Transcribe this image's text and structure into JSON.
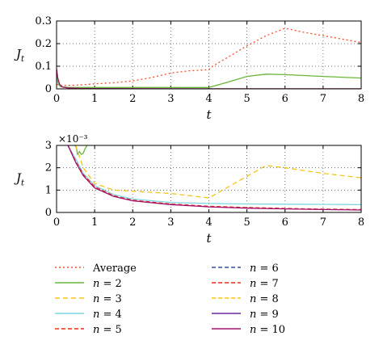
{
  "chart_data": [
    {
      "type": "line",
      "xlabel": "t",
      "ylabel": "J_t",
      "xlim": [
        0,
        8
      ],
      "ylim": [
        0,
        0.3
      ],
      "xticks": [
        "0",
        "1",
        "2",
        "3",
        "4",
        "5",
        "6",
        "7",
        "8"
      ],
      "yticks": [
        "0",
        "0.1",
        "0.2",
        "0.3"
      ],
      "grid": true,
      "series": [
        {
          "name": "Average",
          "color": "#ff4b2b",
          "dash": "2,3",
          "x": [
            0,
            0.1,
            0.2,
            0.5,
            1,
            1.5,
            2,
            2.5,
            3,
            3.5,
            4,
            4.1,
            4.5,
            5,
            5.5,
            6,
            6.5,
            7,
            7.5,
            8
          ],
          "y": [
            0.02,
            0.015,
            0.015,
            0.016,
            0.022,
            0.027,
            0.035,
            0.05,
            0.07,
            0.08,
            0.085,
            0.1,
            0.14,
            0.19,
            0.235,
            0.268,
            0.25,
            0.235,
            0.22,
            0.205
          ]
        },
        {
          "name": "n = 2",
          "color": "#6ab73a",
          "dash": "",
          "x": [
            0,
            0.05,
            0.1,
            0.3,
            1,
            2,
            3,
            4,
            4.5,
            5,
            5.5,
            6,
            7,
            8
          ],
          "y": [
            0.05,
            0.02,
            0.01,
            0.006,
            0.006,
            0.006,
            0.006,
            0.006,
            0.03,
            0.055,
            0.065,
            0.063,
            0.055,
            0.048
          ]
        },
        {
          "name": "n = 10",
          "color": "#a4106e",
          "dash": "",
          "x": [
            0,
            0.03,
            0.08,
            0.15,
            0.3,
            0.6,
            1,
            2,
            4,
            8
          ],
          "y": [
            0.09,
            0.05,
            0.02,
            0.008,
            0.004,
            0.002,
            0.0013,
            0.0007,
            0.0004,
            0.0002
          ]
        }
      ]
    },
    {
      "type": "line",
      "xlabel": "t",
      "ylabel": "J_t",
      "scale_label": "×10⁻³",
      "xlim": [
        0,
        8
      ],
      "ylim": [
        0,
        3
      ],
      "xticks": [
        "0",
        "1",
        "2",
        "3",
        "4",
        "5",
        "6",
        "7",
        "8"
      ],
      "yticks": [
        "0",
        "1",
        "2",
        "3"
      ],
      "grid": true,
      "series": [
        {
          "name": "n = 2",
          "color": "#6ab73a",
          "dash": "",
          "x": [
            0.48,
            0.52,
            0.55,
            0.6,
            0.65,
            0.7,
            0.75,
            0.8
          ],
          "y": [
            3,
            2.9,
            2.6,
            2.72,
            2.6,
            2.65,
            2.85,
            3
          ]
        },
        {
          "name": "n = 3",
          "color": "#f5c518",
          "dash": "6,4",
          "x": [
            0.5,
            0.7,
            1,
            1.5,
            2,
            3,
            4,
            5.5,
            6,
            7,
            8
          ],
          "y": [
            3,
            2,
            1.3,
            1.0,
            0.95,
            0.85,
            0.65,
            2.1,
            2.0,
            1.75,
            1.55
          ]
        },
        {
          "name": "n = 4",
          "color": "#7fd6e3",
          "dash": "",
          "x": [
            0.3,
            0.5,
            0.7,
            1,
            1.5,
            2,
            3,
            4,
            5,
            6,
            7,
            8
          ],
          "y": [
            3,
            2.4,
            1.75,
            1.2,
            0.8,
            0.6,
            0.45,
            0.4,
            0.38,
            0.37,
            0.36,
            0.35
          ]
        },
        {
          "name": "n = 5",
          "color": "#e8301e",
          "dash": "5,3",
          "x": [
            0.3,
            0.5,
            0.7,
            1,
            1.5,
            2,
            3,
            4,
            5,
            6,
            7,
            8
          ],
          "y": [
            3,
            2.3,
            1.7,
            1.15,
            0.75,
            0.55,
            0.38,
            0.28,
            0.22,
            0.18,
            0.15,
            0.13
          ]
        },
        {
          "name": "n = 10",
          "color": "#a4106e",
          "dash": "",
          "x": [
            0.3,
            0.5,
            0.7,
            1,
            1.5,
            2,
            3,
            4,
            5,
            6,
            7,
            8
          ],
          "y": [
            3,
            2.25,
            1.65,
            1.1,
            0.72,
            0.52,
            0.35,
            0.25,
            0.19,
            0.16,
            0.13,
            0.11
          ]
        }
      ]
    }
  ],
  "legend": [
    {
      "label": "Average",
      "color": "#ff4b2b",
      "dash": "2,3"
    },
    {
      "label": "n = 2",
      "color": "#6ab73a",
      "dash": ""
    },
    {
      "label": "n = 3",
      "color": "#f5c518",
      "dash": "6,4"
    },
    {
      "label": "n = 4",
      "color": "#7fd6e3",
      "dash": ""
    },
    {
      "label": "n = 5",
      "color": "#e8301e",
      "dash": "5,3"
    },
    {
      "label": "n = 6",
      "color": "#3a4fa0",
      "dash": "5,3"
    },
    {
      "label": "n = 7",
      "color": "#e8301e",
      "dash": "5,3"
    },
    {
      "label": "n = 8",
      "color": "#f5c518",
      "dash": "5,3"
    },
    {
      "label": "n = 9",
      "color": "#6a2ca0",
      "dash": ""
    },
    {
      "label": "n = 10",
      "color": "#a4106e",
      "dash": ""
    }
  ]
}
